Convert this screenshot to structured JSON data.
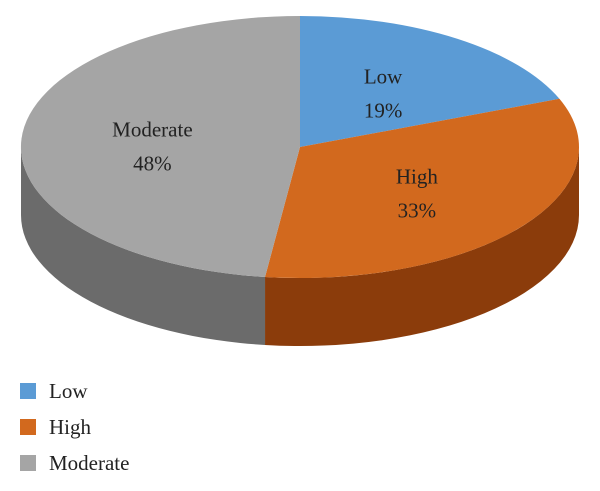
{
  "chart_data": {
    "type": "pie",
    "style": "3d",
    "title": "",
    "slices": [
      {
        "label": "Low",
        "value": 19,
        "display": "19%",
        "color": "#5B9BD5",
        "side_color": "#3F6E99"
      },
      {
        "label": "High",
        "value": 33,
        "display": "33%",
        "color": "#D2691E",
        "side_color": "#8B3C0B"
      },
      {
        "label": "Moderate",
        "value": 48,
        "display": "48%",
        "color": "#A5A5A5",
        "side_color": "#6B6B6B"
      }
    ],
    "legend_position": "bottom-left",
    "start_angle": "12 o'clock",
    "direction": "clockwise"
  }
}
